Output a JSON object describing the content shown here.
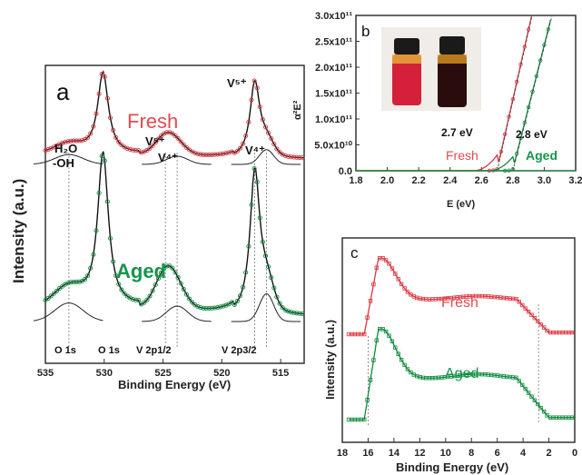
{
  "chart_data": [
    {
      "panel": "a",
      "type": "line",
      "xlabel": "Binding Energy (eV)",
      "ylabel": "Intensity (a.u.)",
      "xlim": [
        535,
        513
      ],
      "xticks": [
        "535",
        "530",
        "525",
        "520",
        "515"
      ],
      "grid": false,
      "peaks_eV": {
        "O1s_OH": 533.0,
        "O1s": 530.1,
        "V2p12_V5": 524.8,
        "V2p12_V4": 523.8,
        "V2p32_V5": 517.2,
        "V2p32_V4": 516.2
      },
      "series": [
        {
          "name": "Fresh",
          "color": "#d9363e",
          "label_color": "#e04b52"
        },
        {
          "name": "Aged",
          "color": "#0e8a3c",
          "label_color": "#13954a"
        }
      ],
      "annotations": {
        "water": "H₂O",
        "hydroxyl": "-OH",
        "v5_low": "V⁵⁺",
        "v4_low": "V⁴⁺",
        "v5_high": "V⁵⁺",
        "v4_high": "V⁴⁺",
        "o1s_a": "O 1s",
        "o1s_b": "O 1s",
        "v2p12": "V 2p1/2",
        "v2p32": "V 2p3/2"
      }
    },
    {
      "panel": "b",
      "type": "line",
      "xlabel": "E (eV)",
      "ylabel": "α²E²",
      "xlim": [
        1.8,
        3.2
      ],
      "ylim": [
        0,
        300000000000.0
      ],
      "xticks": [
        "1.8",
        "2.0",
        "2.2",
        "2.4",
        "2.6",
        "2.8",
        "3.0",
        "3.2"
      ],
      "yticks": [
        "0.0",
        "5.0x10¹⁰",
        "1.0x10¹¹",
        "1.5x10¹¹",
        "2.0x10¹¹",
        "2.5x10¹¹",
        "3.0x10¹¹"
      ],
      "series": [
        {
          "name": "Fresh",
          "bandgap_eV": 2.7,
          "bandgap_label": "2.7 eV",
          "color": "#d9363e"
        },
        {
          "name": "Aged",
          "bandgap_eV": 2.8,
          "bandgap_label": "2.8 eV",
          "color": "#0e8a3c"
        }
      ]
    },
    {
      "panel": "c",
      "type": "line",
      "xlabel": "Binding Energy (eV)",
      "ylabel": "Intensity (a.u.)",
      "xlim": [
        18,
        0
      ],
      "xticks": [
        "18",
        "16",
        "14",
        "12",
        "10",
        "8",
        "6",
        "4",
        "2",
        "0"
      ],
      "onset_eV": 16.0,
      "cutoff_eV": 2.8,
      "series": [
        {
          "name": "Fresh",
          "color": "#d9363e"
        },
        {
          "name": "Aged",
          "color": "#0e8a3c"
        }
      ]
    }
  ],
  "labels": {
    "panel_a": "a",
    "panel_b": "b",
    "panel_c": "c"
  }
}
